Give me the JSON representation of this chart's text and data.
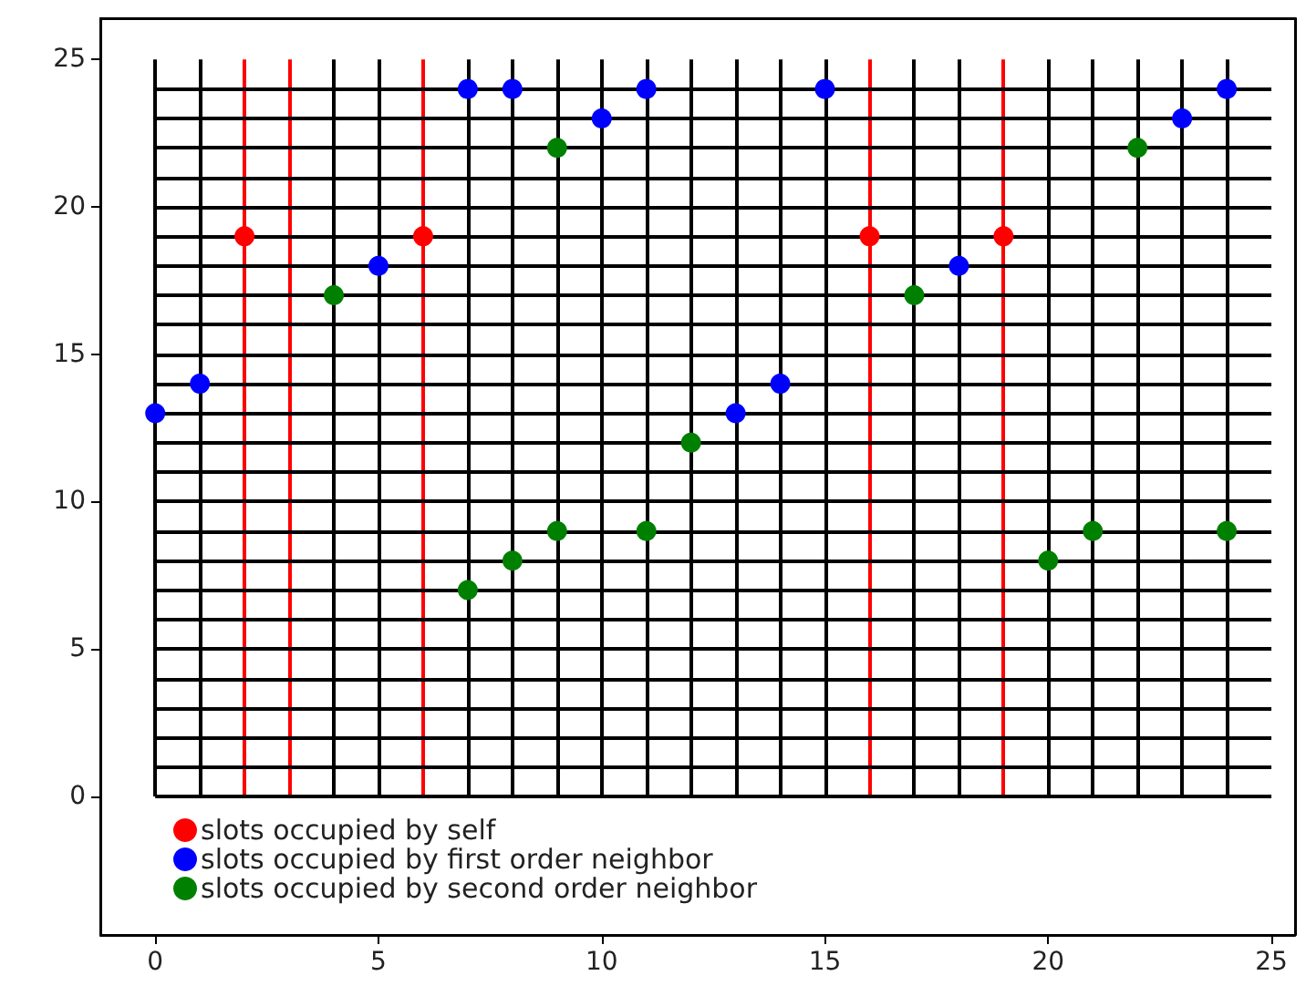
{
  "chart_data": {
    "type": "scatter",
    "marker": "circle",
    "grid": false,
    "legend": "bottom left",
    "xlim": [
      -1.23,
      25.53
    ],
    "xticks": [
      0,
      5,
      10,
      15,
      20,
      25
    ],
    "ylim": [
      -4.7,
      26.4
    ],
    "yticks": [
      0,
      5,
      10,
      15,
      20,
      25
    ],
    "series": [
      {
        "name": "slots occupied by self",
        "color": "#ff0000",
        "x": [
          2,
          6,
          16,
          19
        ],
        "values": [
          19,
          19,
          19,
          19
        ]
      },
      {
        "name": "slots occupied by first order neighbor",
        "color": "#0000ff",
        "x": [
          0,
          1,
          5,
          7,
          8,
          10,
          11,
          13,
          14,
          15,
          18,
          23,
          24
        ],
        "values": [
          13,
          14,
          18,
          24,
          24,
          23,
          24,
          13,
          14,
          24,
          18,
          23,
          24
        ]
      },
      {
        "name": "slots occupied by second order neighbor",
        "color": "#008000",
        "x": [
          4,
          7,
          8,
          9,
          9,
          11,
          12,
          17,
          20,
          21,
          22,
          24
        ],
        "values": [
          17,
          7,
          8,
          9,
          22,
          9,
          12,
          17,
          8,
          9,
          22,
          9
        ]
      }
    ],
    "ref_lines": [
      {
        "axis": "x",
        "value": 0,
        "color": "#000000"
      },
      {
        "axis": "x",
        "value": 1,
        "color": "#000000"
      },
      {
        "axis": "x",
        "value": 2,
        "color": "#ff0000"
      },
      {
        "axis": "x",
        "value": 3,
        "color": "#ff0000"
      },
      {
        "axis": "x",
        "value": 4,
        "color": "#000000"
      },
      {
        "axis": "x",
        "value": 5,
        "color": "#000000"
      },
      {
        "axis": "x",
        "value": 6,
        "color": "#ff0000"
      },
      {
        "axis": "x",
        "value": 7,
        "color": "#000000"
      },
      {
        "axis": "x",
        "value": 8,
        "color": "#000000"
      },
      {
        "axis": "x",
        "value": 9,
        "color": "#000000"
      },
      {
        "axis": "x",
        "value": 10,
        "color": "#000000"
      },
      {
        "axis": "x",
        "value": 11,
        "color": "#000000"
      },
      {
        "axis": "x",
        "value": 12,
        "color": "#000000"
      },
      {
        "axis": "x",
        "value": 13,
        "color": "#000000"
      },
      {
        "axis": "x",
        "value": 14,
        "color": "#000000"
      },
      {
        "axis": "x",
        "value": 15,
        "color": "#000000"
      },
      {
        "axis": "x",
        "value": 16,
        "color": "#ff0000"
      },
      {
        "axis": "x",
        "value": 17,
        "color": "#000000"
      },
      {
        "axis": "x",
        "value": 18,
        "color": "#000000"
      },
      {
        "axis": "x",
        "value": 19,
        "color": "#ff0000"
      },
      {
        "axis": "x",
        "value": 20,
        "color": "#000000"
      },
      {
        "axis": "x",
        "value": 21,
        "color": "#000000"
      },
      {
        "axis": "x",
        "value": 22,
        "color": "#000000"
      },
      {
        "axis": "x",
        "value": 23,
        "color": "#000000"
      },
      {
        "axis": "x",
        "value": 24,
        "color": "#000000"
      },
      {
        "axis": "y",
        "value": 0,
        "color": "#000000"
      },
      {
        "axis": "y",
        "value": 1,
        "color": "#000000"
      },
      {
        "axis": "y",
        "value": 2,
        "color": "#000000"
      },
      {
        "axis": "y",
        "value": 3,
        "color": "#000000"
      },
      {
        "axis": "y",
        "value": 4,
        "color": "#000000"
      },
      {
        "axis": "y",
        "value": 5,
        "color": "#000000"
      },
      {
        "axis": "y",
        "value": 6,
        "color": "#000000"
      },
      {
        "axis": "y",
        "value": 7,
        "color": "#000000"
      },
      {
        "axis": "y",
        "value": 8,
        "color": "#000000"
      },
      {
        "axis": "y",
        "value": 9,
        "color": "#000000"
      },
      {
        "axis": "y",
        "value": 10,
        "color": "#000000"
      },
      {
        "axis": "y",
        "value": 11,
        "color": "#000000"
      },
      {
        "axis": "y",
        "value": 12,
        "color": "#000000"
      },
      {
        "axis": "y",
        "value": 13,
        "color": "#000000"
      },
      {
        "axis": "y",
        "value": 14,
        "color": "#000000"
      },
      {
        "axis": "y",
        "value": 15,
        "color": "#000000"
      },
      {
        "axis": "y",
        "value": 16,
        "color": "#000000"
      },
      {
        "axis": "y",
        "value": 17,
        "color": "#000000"
      },
      {
        "axis": "y",
        "value": 18,
        "color": "#000000"
      },
      {
        "axis": "y",
        "value": 19,
        "color": "#000000"
      },
      {
        "axis": "y",
        "value": 20,
        "color": "#000000"
      },
      {
        "axis": "y",
        "value": 21,
        "color": "#000000"
      },
      {
        "axis": "y",
        "value": 22,
        "color": "#000000"
      },
      {
        "axis": "y",
        "value": 23,
        "color": "#000000"
      },
      {
        "axis": "y",
        "value": 24,
        "color": "#000000"
      }
    ]
  }
}
